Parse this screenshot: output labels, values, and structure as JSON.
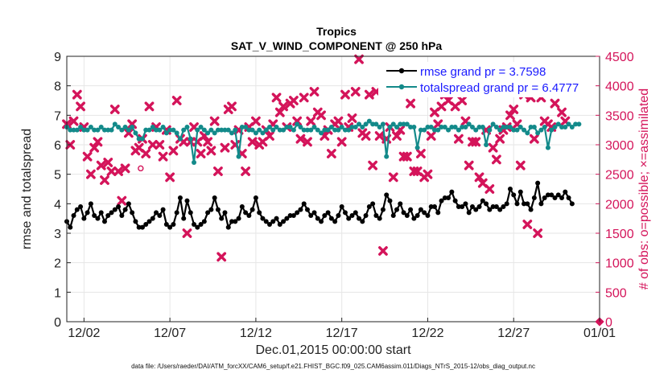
{
  "title": "Tropics",
  "subtitle": "SAT_V_WIND_COMPONENT @ 250 hPa",
  "footer": "data file: /Users/raeder/DAI/ATM_forcXX/CAM6_setup/f.e21.FHIST_BGC.f09_025.CAM6assim.011/Diags_NTrS_2015-12/obs_diag_output.nc",
  "colors": {
    "rmse": "#000000",
    "spread": "#138a8a",
    "obs": "#d4145a",
    "legend_text": "#1a1aff"
  },
  "chart_data": {
    "type": "line",
    "title": "Tropics",
    "subtitle": "SAT_V_WIND_COMPONENT @ 250 hPa",
    "xlabel": "Dec.01,2015 00:00:00 start",
    "ylabel": "rmse and totalspread",
    "ylabel_right": "# of obs: o=possible; ×=assimilated",
    "xlim": [
      0,
      31
    ],
    "ylim": [
      0,
      9
    ],
    "ylim_right": [
      0,
      4500
    ],
    "x_ticks": [
      {
        "value": 1,
        "label": "12/02"
      },
      {
        "value": 6,
        "label": "12/07"
      },
      {
        "value": 11,
        "label": "12/12"
      },
      {
        "value": 16,
        "label": "12/17"
      },
      {
        "value": 21,
        "label": "12/22"
      },
      {
        "value": 26,
        "label": "12/27"
      },
      {
        "value": 31,
        "label": "01/01"
      }
    ],
    "y_ticks": [
      "0",
      "1",
      "2",
      "3",
      "4",
      "5",
      "6",
      "7",
      "8",
      "9"
    ],
    "y_ticks_right": [
      "0",
      "500",
      "1000",
      "1500",
      "2000",
      "2500",
      "3000",
      "3500",
      "4000",
      "4500"
    ],
    "legend": {
      "position": "top-right",
      "entries": [
        "rmse grand pr = 3.7598",
        "totalspread grand pr = 6.4777"
      ]
    },
    "series": [
      {
        "name": "rmse grand pr = 3.7598",
        "axis": "left",
        "values": [
          3.4,
          3.2,
          3.6,
          3.8,
          3.9,
          3.5,
          3.7,
          4.0,
          3.6,
          3.5,
          3.7,
          3.4,
          3.6,
          3.7,
          3.8,
          3.9,
          3.6,
          3.8,
          4.0,
          3.7,
          3.4,
          3.2,
          3.2,
          3.3,
          3.4,
          3.5,
          3.7,
          3.6,
          3.8,
          3.3,
          3.2,
          3.3,
          3.7,
          4.2,
          3.5,
          4.1,
          3.7,
          3.3,
          3.2,
          3.3,
          3.4,
          3.7,
          3.8,
          4.2,
          3.8,
          3.5,
          3.7,
          3.2,
          3.4,
          3.4,
          3.5,
          3.9,
          3.7,
          3.6,
          3.8,
          4.2,
          3.7,
          3.5,
          3.4,
          3.3,
          3.4,
          3.5,
          3.3,
          3.4,
          3.5,
          3.6,
          3.6,
          3.7,
          3.8,
          4.0,
          3.8,
          3.6,
          3.7,
          3.5,
          3.4,
          3.6,
          3.7,
          3.5,
          3.4,
          3.6,
          3.9,
          3.7,
          3.5,
          3.6,
          3.7,
          3.5,
          3.4,
          3.6,
          3.9,
          4.0,
          3.6,
          3.5,
          3.8,
          4.3,
          4.1,
          3.6,
          3.8,
          4.0,
          3.7,
          3.6,
          3.8,
          3.5,
          3.6,
          3.8,
          3.7,
          3.6,
          3.9,
          3.9,
          3.7,
          4.1,
          4.2,
          4.2,
          4.4,
          4.1,
          3.9,
          3.9,
          4.0,
          3.7,
          3.9,
          3.8,
          3.9,
          4.1,
          4.0,
          3.8,
          3.9,
          3.9,
          3.8,
          3.9,
          4.0,
          4.5,
          4.3,
          4.0,
          4.4,
          4.0,
          4.0,
          3.8,
          4.2,
          4.7,
          4.0,
          4.2,
          4.3,
          4.3,
          4.2,
          4.3,
          4.2,
          4.4,
          4.2,
          4.0
        ]
      },
      {
        "name": "totalspread grand pr = 6.4777",
        "axis": "left",
        "values": [
          6.6,
          6.5,
          6.5,
          6.5,
          6.6,
          6.5,
          6.5,
          6.6,
          6.5,
          6.5,
          6.6,
          6.5,
          6.5,
          6.5,
          6.7,
          6.6,
          6.5,
          6.6,
          6.5,
          6.6,
          6.4,
          6.2,
          6.2,
          6.5,
          6.5,
          6.6,
          6.5,
          6.5,
          6.6,
          6.4,
          6.5,
          6.5,
          6.4,
          6.2,
          6.5,
          6.6,
          6.2,
          5.4,
          6.5,
          6.6,
          6.5,
          6.4,
          6.5,
          6.4,
          6.5,
          6.5,
          6.5,
          6.5,
          6.4,
          6.5,
          5.6,
          6.6,
          6.6,
          6.5,
          6.5,
          6.4,
          6.5,
          6.4,
          6.5,
          6.6,
          6.5,
          6.6,
          6.5,
          6.5,
          6.6,
          6.6,
          6.5,
          6.7,
          6.6,
          6.5,
          6.5,
          6.5,
          6.6,
          6.5,
          6.4,
          6.5,
          6.5,
          6.6,
          6.5,
          6.5,
          6.6,
          6.5,
          6.5,
          6.6,
          6.6,
          6.7,
          6.6,
          6.7,
          6.8,
          6.7,
          6.7,
          6.6,
          6.7,
          5.6,
          6.6,
          6.7,
          6.6,
          6.7,
          6.7,
          6.7,
          6.6,
          6.6,
          5.9,
          6.5,
          6.5,
          6.6,
          6.6,
          6.5,
          6.5,
          6.6,
          6.6,
          6.5,
          6.6,
          6.6,
          6.5,
          6.6,
          6.6,
          6.7,
          6.6,
          6.5,
          6.6,
          6.6,
          6.0,
          6.5,
          6.7,
          6.6,
          6.5,
          6.6,
          6.6,
          6.6,
          6.5,
          6.5,
          6.6,
          6.5,
          6.4,
          6.6,
          6.6,
          6.4,
          6.5,
          6.6,
          5.9,
          6.5,
          6.6,
          6.7,
          6.6,
          6.6,
          6.7,
          6.6,
          6.7,
          6.7
        ]
      },
      {
        "name": "# of obs assimilated",
        "axis": "right",
        "marker": "x",
        "values": [
          3350,
          3000,
          3400,
          3850,
          3650,
          3300,
          2800,
          2500,
          2950,
          3050,
          2650,
          2400,
          2700,
          2550,
          3600,
          2550,
          2050,
          2600,
          3200,
          3350,
          2900,
          2950,
          3100,
          2850,
          3650,
          3000,
          3300,
          3000,
          2800,
          3250,
          2450,
          2900,
          3750,
          3100,
          3050,
          1500,
          3050,
          3300,
          3050,
          2850,
          3150,
          3050,
          2900,
          3400,
          2550,
          1100,
          2950,
          3600,
          3650,
          3000,
          3250,
          2850,
          2550,
          3300,
          3050,
          3400,
          3000,
          3050,
          3250,
          3150,
          3350,
          3800,
          3550,
          3650,
          3300,
          3700,
          3750,
          3400,
          3100,
          3800,
          3050,
          3400,
          3900,
          3550,
          3500,
          3150,
          3250,
          2850,
          3350,
          3400,
          3050,
          3850,
          3300,
          3450,
          3900,
          4450,
          3200,
          3150,
          3850,
          2650,
          3900,
          3150,
          1200,
          3100,
          3300,
          2450,
          3150,
          3250,
          2800,
          2800,
          3700,
          2550,
          2550,
          2850,
          2450,
          2500,
          3150,
          3550,
          3350,
          3650,
          3850,
          3750,
          4000,
          3650,
          3100,
          3750,
          3400,
          2650,
          3050,
          3050,
          2450,
          2350,
          3250,
          2250,
          2950,
          2750,
          3100,
          3250,
          3300,
          3500,
          3600,
          3350,
          2650,
          3850,
          1650,
          3800,
          3100,
          1500,
          3800,
          3400,
          3350,
          3300,
          3700,
          3900,
          3550,
          3400
        ]
      },
      {
        "name": "# of obs possible",
        "axis": "right",
        "marker": "o",
        "points": [
          [
            4.3,
            2600
          ],
          [
            31,
            0
          ]
        ]
      }
    ]
  }
}
